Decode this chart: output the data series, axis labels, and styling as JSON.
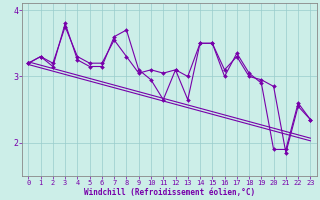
{
  "xlabel": "Windchill (Refroidissement éolien,°C)",
  "bg_color": "#cceee8",
  "line_color": "#7700aa",
  "grid_color": "#99cccc",
  "hours": [
    0,
    1,
    2,
    3,
    4,
    5,
    6,
    7,
    8,
    9,
    10,
    11,
    12,
    13,
    14,
    15,
    16,
    17,
    18,
    19,
    20,
    21,
    22,
    23
  ],
  "series1": [
    3.2,
    3.3,
    3.2,
    3.75,
    3.3,
    3.2,
    3.2,
    3.55,
    3.3,
    3.05,
    3.1,
    3.05,
    3.1,
    3.0,
    3.5,
    3.5,
    3.1,
    3.3,
    3.0,
    2.95,
    2.85,
    1.85,
    2.55,
    2.35
  ],
  "series2": [
    3.2,
    3.3,
    3.15,
    3.8,
    3.25,
    3.15,
    3.15,
    3.6,
    3.7,
    3.1,
    2.95,
    2.65,
    3.1,
    2.65,
    3.5,
    3.5,
    3.0,
    3.35,
    3.05,
    2.9,
    1.9,
    1.9,
    2.6,
    2.35
  ],
  "trend1": [
    3.22,
    3.17,
    3.12,
    3.07,
    3.02,
    2.97,
    2.92,
    2.87,
    2.82,
    2.77,
    2.72,
    2.67,
    2.62,
    2.57,
    2.52,
    2.47,
    2.42,
    2.37,
    2.32,
    2.27,
    2.22,
    2.17,
    2.12,
    2.07
  ],
  "trend2": [
    3.18,
    3.13,
    3.08,
    3.03,
    2.98,
    2.93,
    2.88,
    2.83,
    2.78,
    2.73,
    2.68,
    2.63,
    2.58,
    2.53,
    2.48,
    2.43,
    2.38,
    2.33,
    2.28,
    2.23,
    2.18,
    2.13,
    2.08,
    2.03
  ],
  "ylim": [
    1.5,
    4.1
  ],
  "yticks": [
    2,
    3,
    4
  ],
  "xticks": [
    0,
    1,
    2,
    3,
    4,
    5,
    6,
    7,
    8,
    9,
    10,
    11,
    12,
    13,
    14,
    15,
    16,
    17,
    18,
    19,
    20,
    21,
    22,
    23
  ],
  "tick_fontsize": 5.0,
  "xlabel_fontsize": 5.5,
  "markersize": 2.0,
  "linewidth": 0.8
}
